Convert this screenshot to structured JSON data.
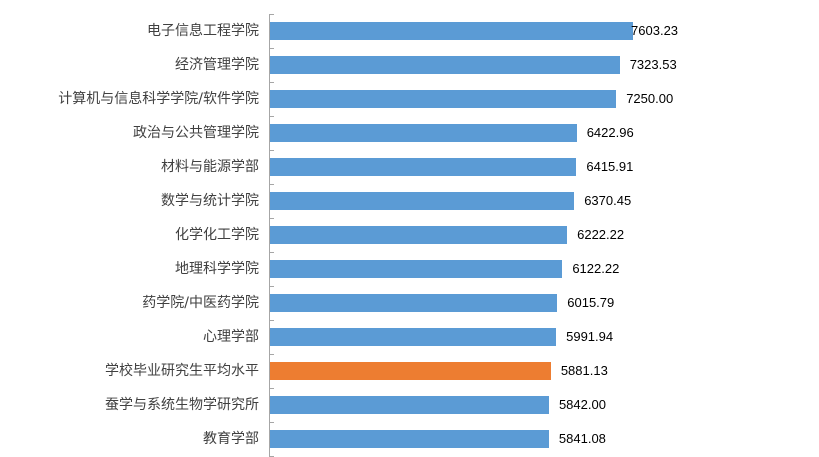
{
  "chart_data": {
    "type": "bar",
    "orientation": "horizontal",
    "title": "",
    "xlabel": "",
    "ylabel": "",
    "xlim": [
      0,
      8000
    ],
    "grid": false,
    "legend": null,
    "colors": {
      "default": "#5b9bd5",
      "highlight": "#ed7d31"
    },
    "categories": [
      "电子信息工程学院",
      "经济管理学院",
      "计算机与信息科学学院/软件学院",
      "政治与公共管理学院",
      "材料与能源学部",
      "数学与统计学院",
      "化学化工学院",
      "地理科学学院",
      "药学院/中医药学院",
      "心理学部",
      "学校毕业研究生平均水平",
      "蚕学与系统生物学研究所",
      "教育学部"
    ],
    "values": [
      7603.23,
      7323.53,
      7250.0,
      6422.96,
      6415.91,
      6370.45,
      6222.22,
      6122.22,
      6015.79,
      5991.94,
      5881.13,
      5842.0,
      5841.08
    ],
    "value_labels": [
      "7603.23",
      "7323.53",
      "7250.00",
      "6422.96",
      "6415.91",
      "6370.45",
      "6222.22",
      "6122.22",
      "6015.79",
      "5991.94",
      "5881.13",
      "5842.00",
      "5841.08"
    ],
    "highlight_index": 10
  }
}
